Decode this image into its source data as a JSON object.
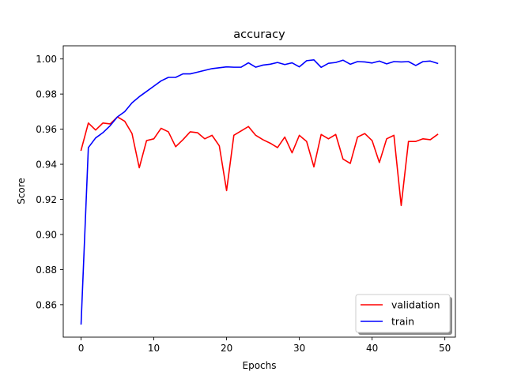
{
  "chart_data": {
    "type": "line",
    "title": "accuracy",
    "xlabel": "Epochs",
    "ylabel": "Score",
    "xlim": [
      -2.45,
      51.45
    ],
    "ylim": [
      0.8415,
      1.0075
    ],
    "x_ticks": [
      0,
      10,
      20,
      30,
      40,
      50
    ],
    "x_tick_labels": [
      "0",
      "10",
      "20",
      "30",
      "40",
      "50"
    ],
    "y_ticks": [
      0.86,
      0.88,
      0.9,
      0.92,
      0.94,
      0.96,
      0.98,
      1.0
    ],
    "y_tick_labels": [
      "0.86",
      "0.88",
      "0.90",
      "0.92",
      "0.94",
      "0.96",
      "0.98",
      "1.00"
    ],
    "grid": false,
    "legend_position": "lower-right",
    "x": [
      0,
      1,
      2,
      3,
      4,
      5,
      6,
      7,
      8,
      9,
      10,
      11,
      12,
      13,
      14,
      15,
      16,
      17,
      18,
      19,
      20,
      21,
      22,
      23,
      24,
      25,
      26,
      27,
      28,
      29,
      30,
      31,
      32,
      33,
      34,
      35,
      36,
      37,
      38,
      39,
      40,
      41,
      42,
      43,
      44,
      45,
      46,
      47,
      48,
      49
    ],
    "series": [
      {
        "name": "validation",
        "color": "#ff0000",
        "values": [
          0.948,
          0.9635,
          0.9595,
          0.9635,
          0.963,
          0.967,
          0.9645,
          0.9575,
          0.938,
          0.9535,
          0.9545,
          0.9605,
          0.9585,
          0.95,
          0.954,
          0.9585,
          0.958,
          0.9545,
          0.9565,
          0.9505,
          0.925,
          0.9565,
          0.959,
          0.9615,
          0.9565,
          0.954,
          0.952,
          0.9495,
          0.9555,
          0.9465,
          0.9565,
          0.953,
          0.9385,
          0.957,
          0.9545,
          0.957,
          0.943,
          0.9405,
          0.9555,
          0.9575,
          0.9535,
          0.941,
          0.9545,
          0.9565,
          0.9165,
          0.953,
          0.953,
          0.9545,
          0.954,
          0.957
        ]
      },
      {
        "name": "train",
        "color": "#0000ff",
        "values": [
          0.849,
          0.9495,
          0.955,
          0.958,
          0.962,
          0.967,
          0.97,
          0.975,
          0.9785,
          0.9815,
          0.9845,
          0.9875,
          0.9895,
          0.9895,
          0.9915,
          0.9915,
          0.9925,
          0.9935,
          0.9945,
          0.995,
          0.9955,
          0.9953,
          0.9953,
          0.9978,
          0.9953,
          0.9965,
          0.997,
          0.998,
          0.9968,
          0.9978,
          0.9955,
          0.999,
          0.9995,
          0.9952,
          0.9975,
          0.998,
          0.9993,
          0.997,
          0.9985,
          0.9983,
          0.9977,
          0.9988,
          0.9972,
          0.9985,
          0.9983,
          0.9985,
          0.9963,
          0.9985,
          0.9988,
          0.9975
        ]
      }
    ]
  }
}
